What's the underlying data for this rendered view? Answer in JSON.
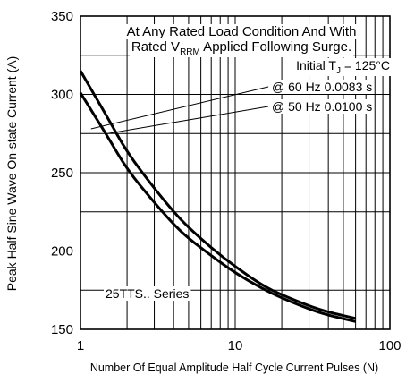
{
  "chart_data": {
    "type": "line",
    "xlabel": "Number Of Equal Amplitude Half Cycle Current Pulses (N)",
    "ylabel": "Peak Half Sine Wave On-state Current (A)",
    "xscale": "log",
    "xlim": [
      1,
      100
    ],
    "ylim": [
      150,
      350
    ],
    "x_ticks": [
      1,
      10,
      100
    ],
    "x_tick_labels": [
      "1",
      "10",
      "100"
    ],
    "y_ticks": [
      150,
      200,
      250,
      300,
      350
    ],
    "y_tick_labels": [
      "150",
      "200",
      "250",
      "300",
      "350"
    ],
    "grid": true,
    "annotations": {
      "line1": "At Any Rated Load Condition And With",
      "line2_pre": "Rated V",
      "line2_sub": "RRM",
      "line2_post": " Applied Following Surge.",
      "tj_pre": "Initial T",
      "tj_sub": "J",
      "tj_post": " = 125°C",
      "label_60hz": "@ 60 Hz 0.0083 s",
      "label_50hz": "@ 50 Hz 0.0100 s",
      "series_label": "25TTS.. Series"
    },
    "series": [
      {
        "name": "@ 60 Hz 0.0083 s",
        "x": [
          1,
          1.5,
          2,
          3,
          4,
          5,
          7,
          10,
          15,
          20,
          30,
          40,
          60
        ],
        "y": [
          315,
          285,
          263,
          240,
          225,
          215,
          202,
          190,
          178,
          172,
          165,
          161,
          157
        ]
      },
      {
        "name": "@ 50 Hz 0.0100 s",
        "x": [
          1,
          1.5,
          2,
          3,
          4,
          5,
          7,
          10,
          15,
          20,
          30,
          40,
          60
        ],
        "y": [
          301,
          273,
          252,
          231,
          217,
          208,
          197,
          186,
          176,
          170,
          163,
          159,
          155
        ]
      }
    ]
  }
}
